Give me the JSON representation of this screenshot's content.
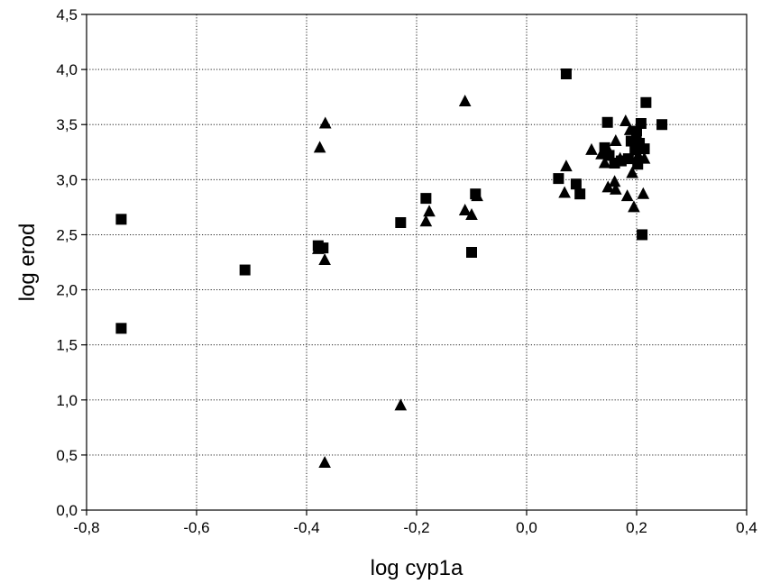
{
  "chart_data": {
    "type": "scatter",
    "title": "",
    "xlabel": "log cyp1a",
    "ylabel": "log erod",
    "xlim": [
      -0.8,
      0.4
    ],
    "ylim": [
      0.0,
      4.5
    ],
    "grid": true,
    "legend": "none",
    "x_ticks": [
      -0.8,
      -0.6,
      -0.4,
      -0.2,
      0.0,
      0.2,
      0.4
    ],
    "x_tick_labels": [
      "-0,8",
      "-0,6",
      "-0,4",
      "-0,2",
      "0,0",
      "0,2",
      "0,4"
    ],
    "y_ticks": [
      0.0,
      0.5,
      1.0,
      1.5,
      2.0,
      2.5,
      3.0,
      3.5,
      4.0,
      4.5
    ],
    "y_tick_labels": [
      "0,0",
      "0,5",
      "1,0",
      "1,5",
      "2,0",
      "2,5",
      "3,0",
      "3,5",
      "4,0",
      "4,5"
    ],
    "series": [
      {
        "marker": "square",
        "color": "#000000",
        "points": [
          [
            -0.737,
            2.64
          ],
          [
            -0.737,
            1.65
          ],
          [
            -0.512,
            2.18
          ],
          [
            -0.379,
            2.4
          ],
          [
            -0.37,
            2.38
          ],
          [
            -0.229,
            2.61
          ],
          [
            -0.183,
            2.83
          ],
          [
            -0.1,
            2.34
          ],
          [
            -0.093,
            2.87
          ],
          [
            0.058,
            3.01
          ],
          [
            0.072,
            3.96
          ],
          [
            0.09,
            2.96
          ],
          [
            0.097,
            2.87
          ],
          [
            0.142,
            3.29
          ],
          [
            0.147,
            3.52
          ],
          [
            0.15,
            3.22
          ],
          [
            0.16,
            3.15
          ],
          [
            0.172,
            3.17
          ],
          [
            0.185,
            3.19
          ],
          [
            0.19,
            3.35
          ],
          [
            0.197,
            3.27
          ],
          [
            0.2,
            3.44
          ],
          [
            0.202,
            3.14
          ],
          [
            0.205,
            3.33
          ],
          [
            0.208,
            3.51
          ],
          [
            0.21,
            2.5
          ],
          [
            0.214,
            3.28
          ],
          [
            0.217,
            3.7
          ],
          [
            0.246,
            3.5
          ]
        ]
      },
      {
        "marker": "triangle",
        "color": "#000000",
        "points": [
          [
            -0.376,
            3.29
          ],
          [
            -0.366,
            3.51
          ],
          [
            -0.379,
            2.37
          ],
          [
            -0.367,
            2.27
          ],
          [
            -0.367,
            0.43
          ],
          [
            -0.229,
            0.95
          ],
          [
            -0.183,
            2.62
          ],
          [
            -0.177,
            2.71
          ],
          [
            -0.112,
            3.71
          ],
          [
            -0.112,
            2.72
          ],
          [
            -0.1,
            2.68
          ],
          [
            -0.09,
            2.85
          ],
          [
            0.069,
            2.88
          ],
          [
            0.072,
            3.12
          ],
          [
            0.118,
            3.27
          ],
          [
            0.136,
            3.23
          ],
          [
            0.142,
            3.15
          ],
          [
            0.148,
            3.27
          ],
          [
            0.148,
            2.93
          ],
          [
            0.16,
            2.98
          ],
          [
            0.162,
            2.91
          ],
          [
            0.162,
            3.35
          ],
          [
            0.17,
            3.19
          ],
          [
            0.18,
            3.53
          ],
          [
            0.183,
            2.85
          ],
          [
            0.188,
            3.45
          ],
          [
            0.192,
            3.06
          ],
          [
            0.195,
            2.75
          ],
          [
            0.2,
            3.41
          ],
          [
            0.203,
            3.22
          ],
          [
            0.212,
            2.87
          ],
          [
            0.214,
            3.19
          ]
        ]
      }
    ]
  }
}
